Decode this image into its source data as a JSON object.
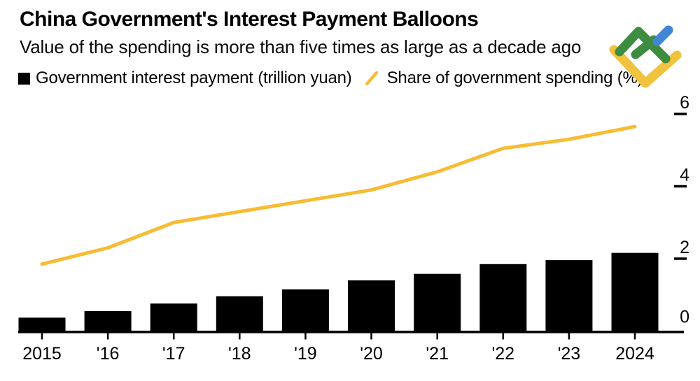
{
  "header": {
    "title": "China Government's Interest Payment Balloons",
    "subtitle": "Value of the spending is more than five times as large as a decade ago"
  },
  "legend": {
    "items": [
      {
        "label": "Government interest payment (trillion yuan)",
        "marker": "black-square",
        "color": "#000000"
      },
      {
        "label": "Share of government spending (%)",
        "marker": "yellow-slash",
        "color": "#F6BC33"
      }
    ]
  },
  "logo": {
    "name": "litefinance-logo",
    "colors": {
      "green": "#3D8C40",
      "blue": "#4186D4",
      "yellow": "#F0C23E"
    }
  },
  "chart_data": {
    "type": "bar+line",
    "title": "China Government's Interest Payment Balloons",
    "subtitle": "Value of the spending is more than five times as large as a decade ago",
    "categories": [
      "2015",
      "'16",
      "'17",
      "'18",
      "'19",
      "'20",
      "'21",
      "'22",
      "'23",
      "2024"
    ],
    "series": [
      {
        "name": "Government interest payment (trillion yuan)",
        "type": "bar",
        "color": "#000000",
        "unit": "trillion yuan",
        "values": [
          0.37,
          0.55,
          0.76,
          0.96,
          1.15,
          1.4,
          1.58,
          1.85,
          1.96,
          2.16
        ]
      },
      {
        "name": "Share of government spending (%)",
        "type": "line",
        "color": "#F6BC33",
        "unit": "%",
        "values": [
          1.85,
          2.3,
          3.0,
          3.3,
          3.6,
          3.9,
          4.4,
          5.05,
          5.3,
          5.65
        ]
      }
    ],
    "yaxis": {
      "side": "right",
      "ticks": [
        0,
        2,
        4,
        6
      ],
      "range": [
        0,
        6.6
      ],
      "gridlines": false
    },
    "xaxis": {
      "baseline": true,
      "ticks": true
    },
    "legend_position": "top-left"
  }
}
